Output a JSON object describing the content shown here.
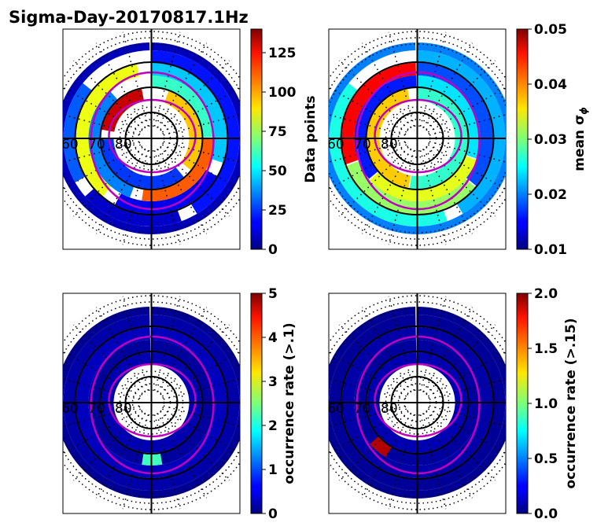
{
  "title": "Sigma-Day-20170817.1Hz",
  "chart_data": [
    {
      "type": "heatmap",
      "projection": "polar",
      "panel": "top-left",
      "quantity": "Data points",
      "colorbar": {
        "label": "Data points",
        "range": [
          0,
          140
        ],
        "ticks": [
          0,
          25,
          50,
          75,
          100,
          125
        ],
        "tick_labels": [
          "0",
          "25",
          "50",
          "75",
          "100",
          "125"
        ]
      },
      "lat_labels": [
        "60",
        "70",
        "80"
      ],
      "bins": [
        {
          "band": 0,
          "sector": [
            0,
            14
          ],
          "value": 20
        },
        {
          "band": 0,
          "sector": [
            16,
            22
          ],
          "value": 10
        },
        {
          "band": 0,
          "sector": [
            24,
            30
          ],
          "value": 30
        },
        {
          "band": 1,
          "sector": [
            0,
            10
          ],
          "value": 45
        },
        {
          "band": 1,
          "sector": [
            12,
            20
          ],
          "value": 15
        },
        {
          "band": 1,
          "sector": [
            22,
            34
          ],
          "value": 85
        },
        {
          "band": 2,
          "sector": [
            0,
            8
          ],
          "value": 60
        },
        {
          "band": 2,
          "sector": [
            9,
            18
          ],
          "value": 110
        },
        {
          "band": 2,
          "sector": [
            20,
            31
          ],
          "value": 35
        },
        {
          "band": 3,
          "sector": [
            2,
            12
          ],
          "value": 95
        },
        {
          "band": 3,
          "sector": [
            14,
            26
          ],
          "value": 25
        },
        {
          "band": 3,
          "sector": [
            28,
            34
          ],
          "value": 130
        },
        {
          "band": 4,
          "sector": [
            0,
            35
          ],
          "value": 8
        }
      ]
    },
    {
      "type": "heatmap",
      "projection": "polar",
      "panel": "top-right",
      "quantity": "mean sigma_phi",
      "colorbar": {
        "label": "mean σ",
        "label_subscript": "ϕ",
        "range": [
          0.01,
          0.05
        ],
        "ticks": [
          0.01,
          0.02,
          0.03,
          0.04,
          0.05
        ],
        "tick_labels": [
          "0.01",
          "0.02",
          "0.03",
          "0.04",
          "0.05"
        ]
      },
      "lat_labels": [
        "60",
        "70",
        "80"
      ],
      "bins": [
        {
          "band": 0,
          "sector": [
            0,
            14
          ],
          "value": 0.022
        },
        {
          "band": 0,
          "sector": [
            16,
            30
          ],
          "value": 0.026
        },
        {
          "band": 1,
          "sector": [
            0,
            12
          ],
          "value": 0.018
        },
        {
          "band": 1,
          "sector": [
            13,
            24
          ],
          "value": 0.031
        },
        {
          "band": 1,
          "sector": [
            25,
            35
          ],
          "value": 0.045
        },
        {
          "band": 2,
          "sector": [
            0,
            10
          ],
          "value": 0.024
        },
        {
          "band": 2,
          "sector": [
            11,
            22
          ],
          "value": 0.034
        },
        {
          "band": 2,
          "sector": [
            23,
            35
          ],
          "value": 0.016
        },
        {
          "band": 3,
          "sector": [
            0,
            18
          ],
          "value": 0.027
        },
        {
          "band": 3,
          "sector": [
            19,
            34
          ],
          "value": 0.037
        },
        {
          "band": 4,
          "sector": [
            0,
            35
          ],
          "value": 0.02
        }
      ]
    },
    {
      "type": "heatmap",
      "projection": "polar",
      "panel": "bottom-left",
      "quantity": "occurrence rate (>.1)",
      "colorbar": {
        "label": "occurrence rate (>.1)",
        "range": [
          0,
          5
        ],
        "ticks": [
          0,
          1,
          2,
          3,
          4,
          5
        ],
        "tick_labels": [
          "0",
          "1",
          "2",
          "3",
          "4",
          "5"
        ]
      },
      "lat_labels": [
        "60",
        "70",
        "80"
      ],
      "bins": [
        {
          "band": 0,
          "sector": [
            0,
            35
          ],
          "value": 0.2
        },
        {
          "band": 1,
          "sector": [
            0,
            35
          ],
          "value": 0.3
        },
        {
          "band": 2,
          "sector": [
            0,
            35
          ],
          "value": 0.15
        },
        {
          "band": 3,
          "sector": [
            0,
            35
          ],
          "value": 0.25
        },
        {
          "band": 4,
          "sector": [
            0,
            35
          ],
          "value": 0.1
        },
        {
          "band": 2,
          "sector": [
            17,
            18
          ],
          "value": 2.2
        }
      ]
    },
    {
      "type": "heatmap",
      "projection": "polar",
      "panel": "bottom-right",
      "quantity": "occurrence rate (>.15)",
      "colorbar": {
        "label": "occurrence rate (>.15)",
        "range": [
          0,
          2
        ],
        "ticks": [
          0,
          0.5,
          1,
          1.5,
          2
        ],
        "tick_labels": [
          "0.0",
          "0.5",
          "1.0",
          "1.5",
          "2.0"
        ]
      },
      "lat_labels": [
        "60",
        "70",
        "80"
      ],
      "bins": [
        {
          "band": 0,
          "sector": [
            0,
            35
          ],
          "value": 0.05
        },
        {
          "band": 1,
          "sector": [
            0,
            35
          ],
          "value": 0.08
        },
        {
          "band": 2,
          "sector": [
            0,
            35
          ],
          "value": 0.06
        },
        {
          "band": 3,
          "sector": [
            0,
            35
          ],
          "value": 0.1
        },
        {
          "band": 4,
          "sector": [
            0,
            35
          ],
          "value": 0.04
        },
        {
          "band": 2,
          "sector": [
            21,
            22
          ],
          "value": 1.9
        }
      ]
    }
  ]
}
